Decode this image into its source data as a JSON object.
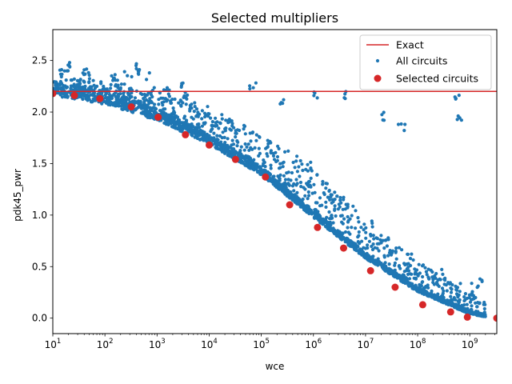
{
  "chart_data": {
    "type": "scatter",
    "title": "Selected multipliers",
    "xlabel": "wce",
    "ylabel": "pdk45_pwr",
    "xscale": "log",
    "xlim": [
      10,
      3300000000
    ],
    "ylim": [
      -0.15,
      2.8
    ],
    "x_ticks": [
      {
        "value": 10,
        "base": "10",
        "exp": "1"
      },
      {
        "value": 100,
        "base": "10",
        "exp": "2"
      },
      {
        "value": 1000,
        "base": "10",
        "exp": "3"
      },
      {
        "value": 10000,
        "base": "10",
        "exp": "4"
      },
      {
        "value": 100000,
        "base": "10",
        "exp": "5"
      },
      {
        "value": 1000000,
        "base": "10",
        "exp": "6"
      },
      {
        "value": 10000000,
        "base": "10",
        "exp": "7"
      },
      {
        "value": 100000000,
        "base": "10",
        "exp": "8"
      },
      {
        "value": 1000000000,
        "base": "10",
        "exp": "9"
      }
    ],
    "y_ticks": [
      "0.0",
      "0.5",
      "1.0",
      "1.5",
      "2.0",
      "2.5"
    ],
    "legend": {
      "placement": "top-right",
      "entries": [
        "Exact",
        "All circuits",
        "Selected circuits"
      ]
    },
    "colors": {
      "exact": "#d62728",
      "all": "#1f77b4",
      "selected": "#d62728"
    },
    "series": [
      {
        "name": "Exact",
        "kind": "hline",
        "y": 2.2
      },
      {
        "name": "All circuits",
        "kind": "cloud",
        "trend": [
          [
            10,
            2.21
          ],
          [
            100,
            2.12
          ],
          [
            1000,
            1.96
          ],
          [
            10000,
            1.72
          ],
          [
            100000,
            1.42
          ],
          [
            1000000,
            1.0
          ],
          [
            10000000,
            0.6
          ],
          [
            100000000,
            0.27
          ],
          [
            1000000000,
            0.05
          ],
          [
            3300000000,
            0.0
          ]
        ]
      },
      {
        "name": "Selected circuits",
        "kind": "points",
        "x": [
          10,
          26,
          80,
          320,
          1050,
          3500,
          10000,
          32000,
          120000,
          350000,
          1200000,
          3800000,
          12500000,
          37000000,
          125000000,
          430000000,
          900000000,
          3300000000
        ],
        "y": [
          2.18,
          2.16,
          2.13,
          2.05,
          1.95,
          1.78,
          1.68,
          1.54,
          1.37,
          1.1,
          0.88,
          0.68,
          0.46,
          0.3,
          0.13,
          0.06,
          0.01,
          0.0
        ]
      }
    ]
  }
}
